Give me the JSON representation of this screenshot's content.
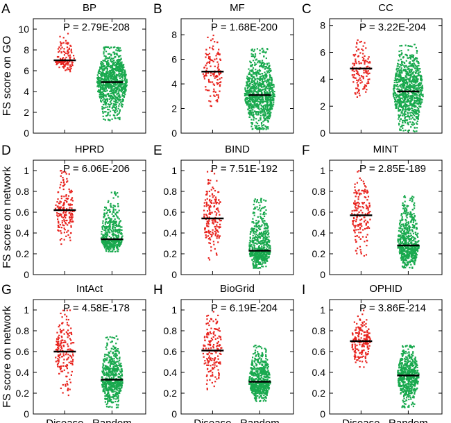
{
  "colors": {
    "disease": "#e8241f",
    "random": "#19a94e",
    "median": "#000000"
  },
  "category_labels": [
    "Disease",
    "Random"
  ],
  "chart_data": [
    {
      "type": "scatter",
      "letter": "A",
      "title": "BP",
      "pvalue": "P = 2.79E-208",
      "ylabel": "FS score on GO",
      "ylim": [
        0,
        11
      ],
      "yticks": [
        0,
        2,
        4,
        6,
        8,
        10
      ],
      "ytick_labels": [
        "0",
        "2",
        "4",
        "6",
        "8",
        "10"
      ],
      "series": [
        {
          "name": "Disease",
          "median": 7.0,
          "range": [
            5.7,
            9.7
          ],
          "count": 130,
          "spread": 4.4
        },
        {
          "name": "Random",
          "median": 4.9,
          "range": [
            1.2,
            8.3
          ],
          "count": 900,
          "spread": 7.0
        }
      ]
    },
    {
      "type": "scatter",
      "letter": "B",
      "title": "MF",
      "pvalue": "P = 1.68E-200",
      "ylabel": "",
      "ylim": [
        0,
        9.3
      ],
      "yticks": [
        0,
        2,
        4,
        6,
        8
      ],
      "ytick_labels": [
        "0",
        "2",
        "4",
        "6",
        "8"
      ],
      "series": [
        {
          "name": "Disease",
          "median": 5.0,
          "range": [
            2.0,
            8.3
          ],
          "count": 130,
          "spread": 4.4
        },
        {
          "name": "Random",
          "median": 3.1,
          "range": [
            0.3,
            6.9
          ],
          "count": 900,
          "spread": 7.0
        }
      ]
    },
    {
      "type": "scatter",
      "letter": "C",
      "title": "CC",
      "pvalue": "P = 3.22E-204",
      "ylabel": "",
      "ylim": [
        0,
        8.5
      ],
      "yticks": [
        0,
        2,
        4,
        6,
        8
      ],
      "ytick_labels": [
        "0",
        "2",
        "4",
        "6",
        "8"
      ],
      "series": [
        {
          "name": "Disease",
          "median": 4.8,
          "range": [
            2.1,
            7.1
          ],
          "count": 130,
          "spread": 4.4
        },
        {
          "name": "Random",
          "median": 3.1,
          "range": [
            0.1,
            6.6
          ],
          "count": 900,
          "spread": 7.0
        }
      ]
    },
    {
      "type": "scatter",
      "letter": "D",
      "title": "HPRD",
      "pvalue": "P = 6.06E-206",
      "ylabel": "",
      "ylim": [
        0,
        1.1
      ],
      "yticks": [
        0,
        0.2,
        0.4,
        0.6,
        0.8,
        1
      ],
      "ytick_labels": [
        "0",
        "0.2",
        "0.4",
        "0.6",
        "0.8",
        "1"
      ],
      "series": [
        {
          "name": "Disease",
          "median": 0.62,
          "range": [
            0.27,
            1.0
          ],
          "count": 180,
          "spread": 4.4
        },
        {
          "name": "Random",
          "median": 0.34,
          "range": [
            0.22,
            0.8
          ],
          "count": 500,
          "spread": 5.0
        }
      ]
    },
    {
      "type": "scatter",
      "letter": "E",
      "title": "BIND",
      "pvalue": "P = 7.51E-192",
      "ylabel": "",
      "ylim": [
        0,
        1.1
      ],
      "yticks": [
        0,
        0.2,
        0.4,
        0.6,
        0.8,
        1
      ],
      "ytick_labels": [
        "0",
        "0.2",
        "0.4",
        "0.6",
        "0.8",
        "1"
      ],
      "series": [
        {
          "name": "Disease",
          "median": 0.54,
          "range": [
            0.14,
            1.0
          ],
          "count": 180,
          "spread": 4.4
        },
        {
          "name": "Random",
          "median": 0.23,
          "range": [
            0.06,
            0.73
          ],
          "count": 600,
          "spread": 5.0
        }
      ]
    },
    {
      "type": "scatter",
      "letter": "F",
      "title": "MINT",
      "pvalue": "P = 2.85E-189",
      "ylabel": "",
      "ylim": [
        0,
        1.1
      ],
      "yticks": [
        0,
        0.2,
        0.4,
        0.6,
        0.8,
        1
      ],
      "ytick_labels": [
        "0",
        "0.2",
        "0.4",
        "0.6",
        "0.8",
        "1"
      ],
      "series": [
        {
          "name": "Disease",
          "median": 0.57,
          "range": [
            0.18,
            1.0
          ],
          "count": 180,
          "spread": 4.4
        },
        {
          "name": "Random",
          "median": 0.28,
          "range": [
            0.06,
            0.76
          ],
          "count": 600,
          "spread": 5.0
        }
      ]
    },
    {
      "type": "scatter",
      "letter": "G",
      "title": "IntAct",
      "pvalue": "P = 4.58E-178",
      "ylabel": "",
      "ylim": [
        0,
        1.1
      ],
      "yticks": [
        0,
        0.2,
        0.4,
        0.6,
        0.8,
        1
      ],
      "ytick_labels": [
        "0",
        "0.2",
        "0.4",
        "0.6",
        "0.8",
        "1"
      ],
      "series": [
        {
          "name": "Disease",
          "median": 0.6,
          "range": [
            0.17,
            1.0
          ],
          "count": 180,
          "spread": 4.4
        },
        {
          "name": "Random",
          "median": 0.33,
          "range": [
            0.06,
            0.75
          ],
          "count": 600,
          "spread": 5.0
        }
      ]
    },
    {
      "type": "scatter",
      "letter": "H",
      "title": "BioGrid",
      "pvalue": "P = 6.19E-204",
      "ylabel": "",
      "ylim": [
        0,
        1.1
      ],
      "yticks": [
        0,
        0.2,
        0.4,
        0.6,
        0.8,
        1
      ],
      "ytick_labels": [
        "0",
        "0.2",
        "0.4",
        "0.6",
        "0.8",
        "1"
      ],
      "series": [
        {
          "name": "Disease",
          "median": 0.61,
          "range": [
            0.22,
            1.0
          ],
          "count": 180,
          "spread": 4.4
        },
        {
          "name": "Random",
          "median": 0.31,
          "range": [
            0.12,
            0.66
          ],
          "count": 600,
          "spread": 5.0
        }
      ]
    },
    {
      "type": "scatter",
      "letter": "I",
      "title": "OPHID",
      "pvalue": "P = 3.86E-214",
      "ylabel": "",
      "ylim": [
        0,
        1.1
      ],
      "yticks": [
        0,
        0.2,
        0.4,
        0.6,
        0.8,
        1
      ],
      "ytick_labels": [
        "0",
        "0.2",
        "0.4",
        "0.6",
        "0.8",
        "1"
      ],
      "series": [
        {
          "name": "Disease",
          "median": 0.7,
          "range": [
            0.45,
            1.0
          ],
          "count": 180,
          "spread": 4.4
        },
        {
          "name": "Random",
          "median": 0.37,
          "range": [
            0.06,
            0.66
          ],
          "count": 600,
          "spread": 5.0
        }
      ]
    }
  ],
  "row_ylabels": [
    "FS score on GO",
    "FS score on network",
    "FS score on network"
  ]
}
